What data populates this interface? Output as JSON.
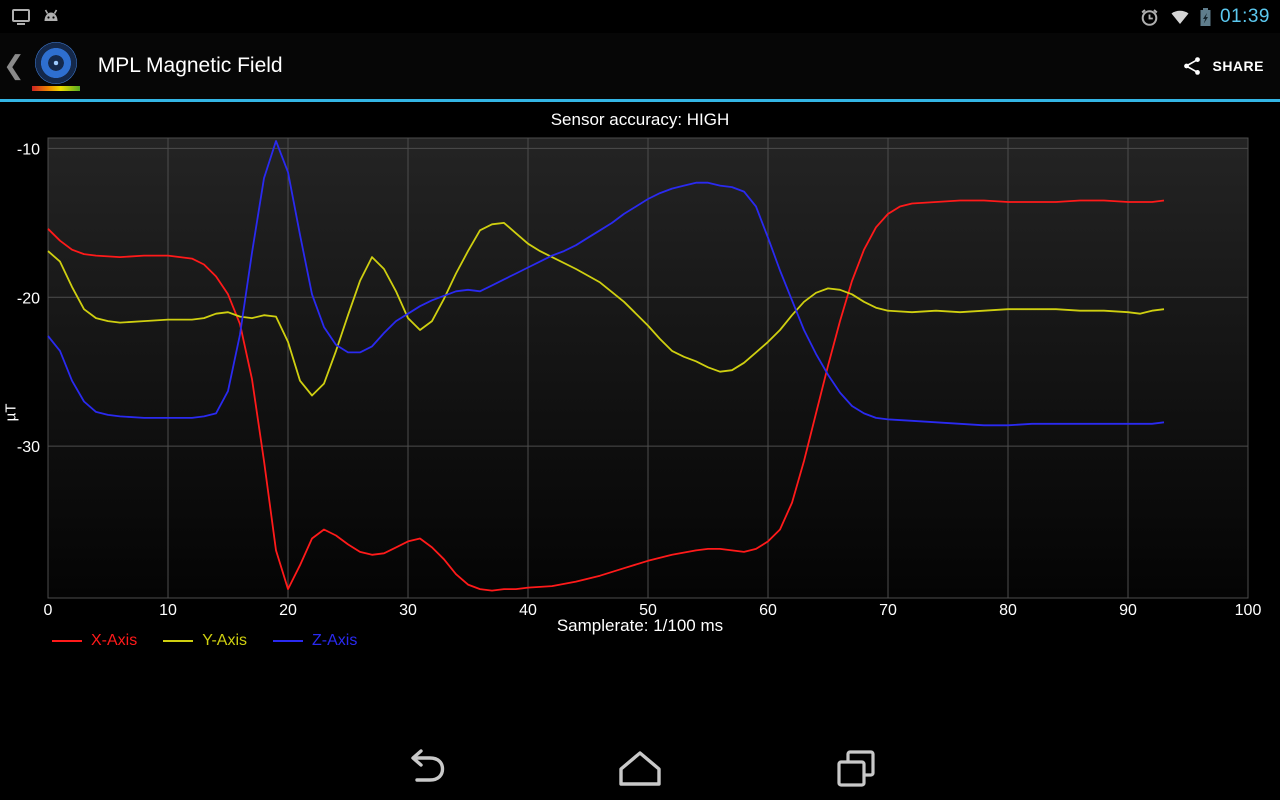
{
  "status_bar": {
    "time": "01:39",
    "time_color": "#5bc8ef",
    "left_icons": [
      "display-mirroring-icon",
      "android-debug-icon"
    ],
    "right_icons": [
      "alarm-icon",
      "wifi-icon",
      "battery-charging-icon"
    ]
  },
  "action_bar": {
    "title": "MPL Magnetic Field",
    "share_label": "SHARE",
    "accent_color": "#33b5e5"
  },
  "chart_data": {
    "type": "line",
    "title": "Sensor accuracy: HIGH",
    "xlabel": "Samplerate: 1/100 ms",
    "ylabel": "µT",
    "xlim": [
      0,
      100
    ],
    "ylim": [
      -40.2,
      -9.3
    ],
    "x_ticks": [
      0,
      10,
      20,
      30,
      40,
      50,
      60,
      70,
      80,
      90,
      100
    ],
    "y_ticks": [
      -10,
      -20,
      -30
    ],
    "grid": true,
    "grid_color": "#4d4d4d",
    "legend_position": "bottom-left",
    "series": [
      {
        "name": "X-Axis",
        "color": "#ff1a1a",
        "points": [
          [
            0,
            -15.4
          ],
          [
            1,
            -16.2
          ],
          [
            2,
            -16.8
          ],
          [
            3,
            -17.1
          ],
          [
            4,
            -17.2
          ],
          [
            6,
            -17.3
          ],
          [
            8,
            -17.2
          ],
          [
            10,
            -17.2
          ],
          [
            12,
            -17.4
          ],
          [
            13,
            -17.8
          ],
          [
            14,
            -18.6
          ],
          [
            15,
            -19.8
          ],
          [
            16,
            -21.8
          ],
          [
            17,
            -25.5
          ],
          [
            18,
            -31.0
          ],
          [
            19,
            -37.0
          ],
          [
            20,
            -39.6
          ],
          [
            21,
            -38.0
          ],
          [
            22,
            -36.2
          ],
          [
            23,
            -35.6
          ],
          [
            24,
            -36.0
          ],
          [
            25,
            -36.6
          ],
          [
            26,
            -37.1
          ],
          [
            27,
            -37.3
          ],
          [
            28,
            -37.2
          ],
          [
            29,
            -36.8
          ],
          [
            30,
            -36.4
          ],
          [
            31,
            -36.2
          ],
          [
            32,
            -36.8
          ],
          [
            33,
            -37.6
          ],
          [
            34,
            -38.6
          ],
          [
            35,
            -39.3
          ],
          [
            36,
            -39.6
          ],
          [
            37,
            -39.7
          ],
          [
            38,
            -39.6
          ],
          [
            39,
            -39.6
          ],
          [
            40,
            -39.5
          ],
          [
            42,
            -39.4
          ],
          [
            44,
            -39.1
          ],
          [
            46,
            -38.7
          ],
          [
            48,
            -38.2
          ],
          [
            50,
            -37.7
          ],
          [
            52,
            -37.3
          ],
          [
            54,
            -37.0
          ],
          [
            55,
            -36.9
          ],
          [
            56,
            -36.9
          ],
          [
            57,
            -37.0
          ],
          [
            58,
            -37.1
          ],
          [
            59,
            -36.9
          ],
          [
            60,
            -36.4
          ],
          [
            61,
            -35.6
          ],
          [
            62,
            -33.8
          ],
          [
            63,
            -31.0
          ],
          [
            64,
            -27.8
          ],
          [
            65,
            -24.6
          ],
          [
            66,
            -21.6
          ],
          [
            67,
            -18.9
          ],
          [
            68,
            -16.8
          ],
          [
            69,
            -15.3
          ],
          [
            70,
            -14.4
          ],
          [
            71,
            -13.9
          ],
          [
            72,
            -13.7
          ],
          [
            74,
            -13.6
          ],
          [
            76,
            -13.5
          ],
          [
            78,
            -13.5
          ],
          [
            80,
            -13.6
          ],
          [
            82,
            -13.6
          ],
          [
            84,
            -13.6
          ],
          [
            86,
            -13.5
          ],
          [
            88,
            -13.5
          ],
          [
            90,
            -13.6
          ],
          [
            92,
            -13.6
          ],
          [
            93,
            -13.5
          ]
        ]
      },
      {
        "name": "Y-Axis",
        "color": "#cfcf10",
        "points": [
          [
            0,
            -16.9
          ],
          [
            1,
            -17.6
          ],
          [
            2,
            -19.3
          ],
          [
            3,
            -20.8
          ],
          [
            4,
            -21.4
          ],
          [
            5,
            -21.6
          ],
          [
            6,
            -21.7
          ],
          [
            8,
            -21.6
          ],
          [
            10,
            -21.5
          ],
          [
            12,
            -21.5
          ],
          [
            13,
            -21.4
          ],
          [
            14,
            -21.1
          ],
          [
            15,
            -21.0
          ],
          [
            16,
            -21.3
          ],
          [
            17,
            -21.4
          ],
          [
            18,
            -21.2
          ],
          [
            19,
            -21.3
          ],
          [
            20,
            -23.0
          ],
          [
            21,
            -25.6
          ],
          [
            22,
            -26.6
          ],
          [
            23,
            -25.8
          ],
          [
            24,
            -23.6
          ],
          [
            25,
            -21.2
          ],
          [
            26,
            -18.9
          ],
          [
            27,
            -17.3
          ],
          [
            28,
            -18.1
          ],
          [
            29,
            -19.6
          ],
          [
            30,
            -21.4
          ],
          [
            31,
            -22.2
          ],
          [
            32,
            -21.6
          ],
          [
            33,
            -20.1
          ],
          [
            34,
            -18.4
          ],
          [
            35,
            -16.9
          ],
          [
            36,
            -15.5
          ],
          [
            37,
            -15.1
          ],
          [
            38,
            -15.0
          ],
          [
            39,
            -15.7
          ],
          [
            40,
            -16.4
          ],
          [
            41,
            -16.9
          ],
          [
            42,
            -17.3
          ],
          [
            44,
            -18.1
          ],
          [
            46,
            -19.0
          ],
          [
            48,
            -20.3
          ],
          [
            50,
            -21.9
          ],
          [
            51,
            -22.8
          ],
          [
            52,
            -23.6
          ],
          [
            53,
            -24.0
          ],
          [
            54,
            -24.3
          ],
          [
            55,
            -24.7
          ],
          [
            56,
            -25.0
          ],
          [
            57,
            -24.9
          ],
          [
            58,
            -24.4
          ],
          [
            59,
            -23.7
          ],
          [
            60,
            -23.0
          ],
          [
            61,
            -22.2
          ],
          [
            62,
            -21.2
          ],
          [
            63,
            -20.3
          ],
          [
            64,
            -19.7
          ],
          [
            65,
            -19.4
          ],
          [
            66,
            -19.5
          ],
          [
            67,
            -19.8
          ],
          [
            68,
            -20.3
          ],
          [
            69,
            -20.7
          ],
          [
            70,
            -20.9
          ],
          [
            72,
            -21.0
          ],
          [
            74,
            -20.9
          ],
          [
            76,
            -21.0
          ],
          [
            78,
            -20.9
          ],
          [
            80,
            -20.8
          ],
          [
            82,
            -20.8
          ],
          [
            84,
            -20.8
          ],
          [
            86,
            -20.9
          ],
          [
            88,
            -20.9
          ],
          [
            90,
            -21.0
          ],
          [
            91,
            -21.1
          ],
          [
            92,
            -20.9
          ],
          [
            93,
            -20.8
          ]
        ]
      },
      {
        "name": "Z-Axis",
        "color": "#2a2af0",
        "points": [
          [
            0,
            -22.6
          ],
          [
            1,
            -23.6
          ],
          [
            2,
            -25.6
          ],
          [
            3,
            -27.0
          ],
          [
            4,
            -27.7
          ],
          [
            5,
            -27.9
          ],
          [
            6,
            -28.0
          ],
          [
            8,
            -28.1
          ],
          [
            10,
            -28.1
          ],
          [
            12,
            -28.1
          ],
          [
            13,
            -28.0
          ],
          [
            14,
            -27.8
          ],
          [
            15,
            -26.3
          ],
          [
            16,
            -22.5
          ],
          [
            17,
            -17.0
          ],
          [
            18,
            -12.0
          ],
          [
            19,
            -9.5
          ],
          [
            20,
            -11.6
          ],
          [
            21,
            -15.8
          ],
          [
            22,
            -19.8
          ],
          [
            23,
            -22.0
          ],
          [
            24,
            -23.2
          ],
          [
            25,
            -23.7
          ],
          [
            26,
            -23.7
          ],
          [
            27,
            -23.3
          ],
          [
            28,
            -22.4
          ],
          [
            29,
            -21.6
          ],
          [
            30,
            -21.1
          ],
          [
            31,
            -20.6
          ],
          [
            32,
            -20.2
          ],
          [
            33,
            -19.9
          ],
          [
            34,
            -19.6
          ],
          [
            35,
            -19.5
          ],
          [
            36,
            -19.6
          ],
          [
            37,
            -19.2
          ],
          [
            38,
            -18.8
          ],
          [
            39,
            -18.4
          ],
          [
            40,
            -18.0
          ],
          [
            41,
            -17.6
          ],
          [
            42,
            -17.2
          ],
          [
            43,
            -16.9
          ],
          [
            44,
            -16.5
          ],
          [
            45,
            -16.0
          ],
          [
            46,
            -15.5
          ],
          [
            47,
            -15.0
          ],
          [
            48,
            -14.4
          ],
          [
            49,
            -13.9
          ],
          [
            50,
            -13.4
          ],
          [
            51,
            -13.0
          ],
          [
            52,
            -12.7
          ],
          [
            53,
            -12.5
          ],
          [
            54,
            -12.3
          ],
          [
            55,
            -12.3
          ],
          [
            56,
            -12.5
          ],
          [
            57,
            -12.6
          ],
          [
            58,
            -12.9
          ],
          [
            59,
            -13.9
          ],
          [
            60,
            -16.0
          ],
          [
            61,
            -18.2
          ],
          [
            62,
            -20.2
          ],
          [
            63,
            -22.2
          ],
          [
            64,
            -23.8
          ],
          [
            65,
            -25.2
          ],
          [
            66,
            -26.4
          ],
          [
            67,
            -27.3
          ],
          [
            68,
            -27.8
          ],
          [
            69,
            -28.1
          ],
          [
            70,
            -28.2
          ],
          [
            72,
            -28.3
          ],
          [
            74,
            -28.4
          ],
          [
            76,
            -28.5
          ],
          [
            78,
            -28.6
          ],
          [
            80,
            -28.6
          ],
          [
            82,
            -28.5
          ],
          [
            84,
            -28.5
          ],
          [
            86,
            -28.5
          ],
          [
            88,
            -28.5
          ],
          [
            90,
            -28.5
          ],
          [
            92,
            -28.5
          ],
          [
            93,
            -28.4
          ]
        ]
      }
    ]
  },
  "nav_bar": {
    "buttons": [
      "back",
      "home",
      "recents"
    ]
  }
}
